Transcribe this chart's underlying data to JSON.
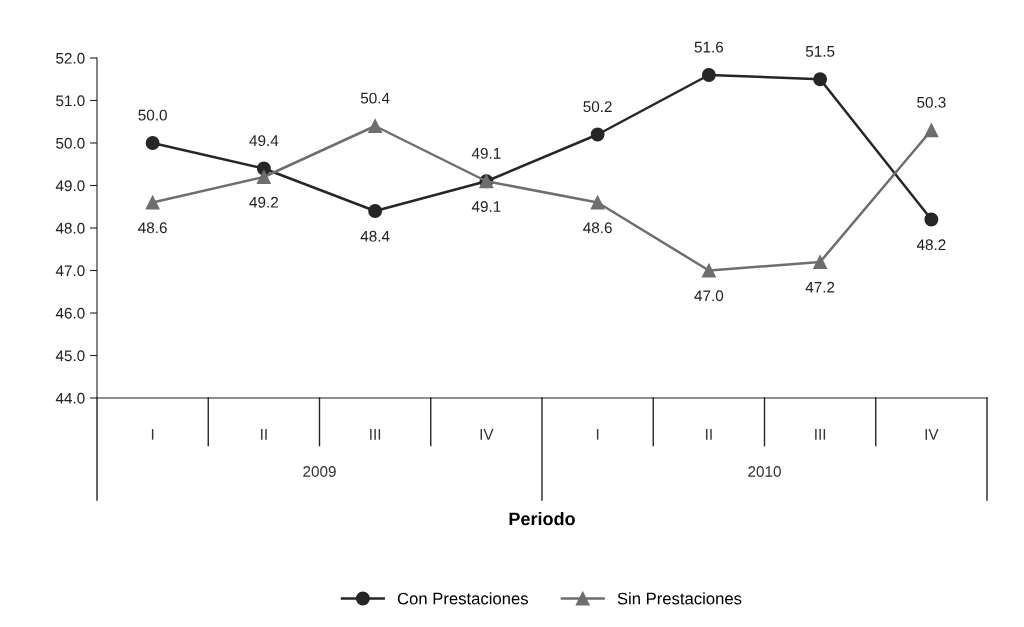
{
  "chart_data": {
    "type": "line",
    "xlabel": "Periodo",
    "categories": [
      "I",
      "II",
      "III",
      "IV",
      "I",
      "II",
      "III",
      "IV"
    ],
    "annotations": [
      "2009",
      "2010"
    ],
    "series": [
      {
        "name": "Con Prestaciones",
        "color": "#262626",
        "marker": "circle",
        "values": [
          50.0,
          49.4,
          48.4,
          49.1,
          50.2,
          51.6,
          51.5,
          48.2
        ],
        "value_labels": [
          "50.0",
          "49.4",
          "48.4",
          "49.1",
          "50.2",
          "51.6",
          "51.5",
          "48.2"
        ]
      },
      {
        "name": "Sin Prestaciones",
        "color": "#6e6e6e",
        "marker": "triangle",
        "values": [
          48.6,
          49.2,
          50.4,
          49.1,
          48.6,
          47.0,
          47.2,
          50.3
        ],
        "value_labels": [
          "48.6",
          "49.2",
          "50.4",
          "49.1",
          "48.6",
          "47.0",
          "47.2",
          "50.3"
        ]
      }
    ],
    "ylim": [
      44,
      52
    ],
    "yticks": [
      {
        "value": 44,
        "label": "44.0"
      },
      {
        "value": 45,
        "label": "45.0"
      },
      {
        "value": 46,
        "label": "46.0"
      },
      {
        "value": 47,
        "label": "47.0"
      },
      {
        "value": 48,
        "label": "48.0"
      },
      {
        "value": 49,
        "label": "49.0"
      },
      {
        "value": 50,
        "label": "50.0"
      },
      {
        "value": 51,
        "label": "51.0"
      },
      {
        "value": 52,
        "label": "52.0"
      }
    ],
    "grid": false,
    "legend": "bottom"
  }
}
